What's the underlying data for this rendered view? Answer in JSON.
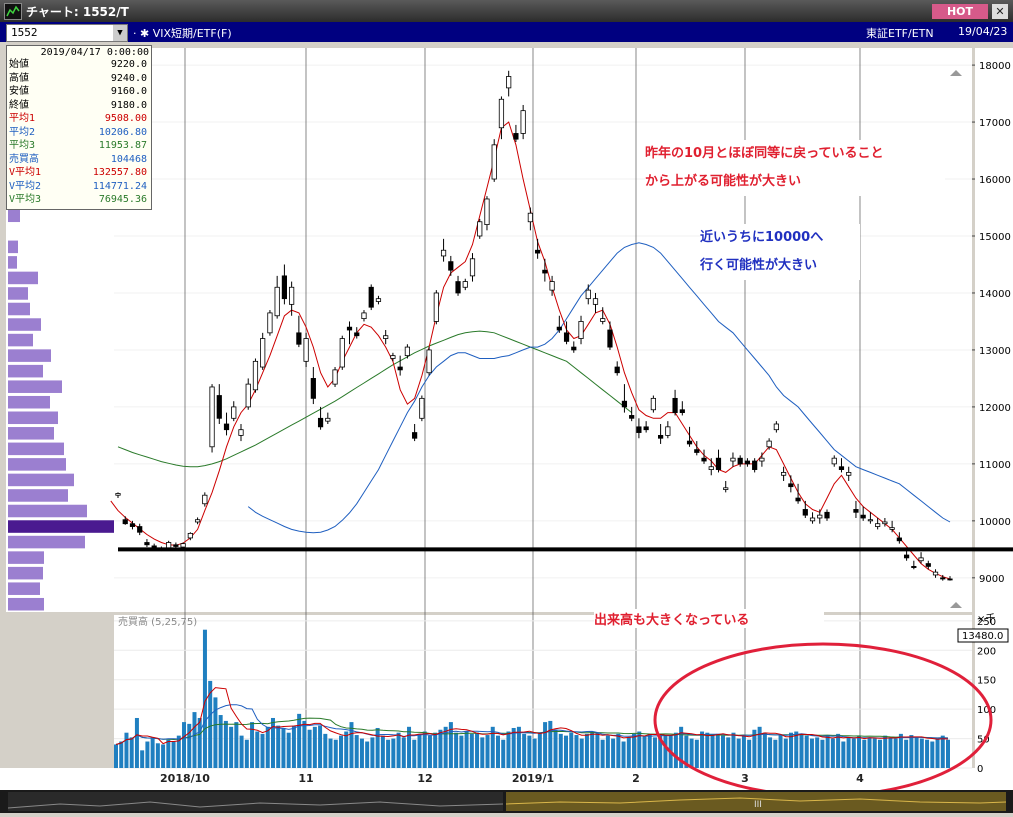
{
  "window": {
    "title": "チャート: 1552/T",
    "hot_label": "HOT",
    "close_label": "✕"
  },
  "toolbar": {
    "symbol": "1552",
    "name": "VIX短期/ETF(F)",
    "market": "東証ETF/ETN",
    "date": "19/04/23"
  },
  "info": {
    "datetime": "2019/04/17 0:00:00",
    "rows": [
      {
        "label": "始値",
        "value": "9220.0",
        "color": "#000000"
      },
      {
        "label": "高値",
        "value": "9240.0",
        "color": "#000000"
      },
      {
        "label": "安値",
        "value": "9160.0",
        "color": "#000000"
      },
      {
        "label": "終値",
        "value": "9180.0",
        "color": "#000000"
      },
      {
        "label": "平均1",
        "value": "9508.00",
        "color": "#cc0000"
      },
      {
        "label": "平均2",
        "value": "10206.80",
        "color": "#1f5fc0"
      },
      {
        "label": "平均3",
        "value": "11953.87",
        "color": "#2a7a2a"
      },
      {
        "label": "売買高",
        "value": "104468",
        "color": "#1f5fc0"
      },
      {
        "label": "V平均1",
        "value": "132557.80",
        "color": "#cc0000"
      },
      {
        "label": "V平均2",
        "value": "114771.24",
        "color": "#1f5fc0"
      },
      {
        "label": "V平均3",
        "value": "76945.36",
        "color": "#2a7a2a"
      }
    ]
  },
  "annotations": {
    "note1_line1": "昨年の10月とほぼ同等に戻っていること",
    "note1_line2": "から上がる可能性が大きい",
    "note2_line1": "近いうちに10000へ",
    "note2_line2": "行く可能性が大きい",
    "note3": "出来高も大きくなっている"
  },
  "chart_data": {
    "type": "candlestick",
    "price_ticks": [
      18000,
      17000,
      16000,
      15000,
      14000,
      13000,
      12000,
      11000,
      10000,
      9000
    ],
    "price_ylim": [
      8400,
      18300
    ],
    "volume_ticks": [
      "250",
      "200",
      "150",
      "100",
      "50",
      "0"
    ],
    "volume_unit": "×千",
    "volume_max_label": "13480.0",
    "volume_panel_label": "売買高 (5,25,75)",
    "x_labels": [
      "2018/10",
      "11",
      "12",
      "2019/1",
      "2",
      "3",
      "4"
    ],
    "horizontal_line_value": 9500,
    "colors": {
      "ma1": "#cc0000",
      "ma2": "#1f5fc0",
      "ma3": "#2a7a2a",
      "volume_bar": "#1f7fc0",
      "volume_profile": "#9b7fd0",
      "volume_profile_highlight": "#4a1a90",
      "highlight_ellipse": "#e0203a"
    },
    "candles": [
      [
        10450,
        10500,
        10400,
        10480
      ],
      [
        10020,
        10080,
        9930,
        9950
      ],
      [
        9950,
        10000,
        9850,
        9900
      ],
      [
        9900,
        9950,
        9750,
        9800
      ],
      [
        9620,
        9680,
        9540,
        9580
      ],
      [
        9560,
        9600,
        9480,
        9500
      ],
      [
        9490,
        9550,
        9470,
        9510
      ],
      [
        9500,
        9650,
        9480,
        9620
      ],
      [
        9580,
        9620,
        9520,
        9550
      ],
      [
        9540,
        9620,
        9510,
        9600
      ],
      [
        9700,
        9800,
        9660,
        9780
      ],
      [
        9980,
        10060,
        9940,
        10020
      ],
      [
        10300,
        10500,
        10250,
        10450
      ],
      [
        11300,
        12400,
        11200,
        12350
      ],
      [
        12200,
        12400,
        11700,
        11800
      ],
      [
        11700,
        11900,
        11500,
        11600
      ],
      [
        11800,
        12100,
        11750,
        12000
      ],
      [
        11500,
        11700,
        11400,
        11600
      ],
      [
        12000,
        12500,
        11950,
        12400
      ],
      [
        12300,
        12850,
        12250,
        12800
      ],
      [
        12700,
        13300,
        12650,
        13200
      ],
      [
        13300,
        13700,
        13250,
        13650
      ],
      [
        13600,
        14300,
        13550,
        14100
      ],
      [
        14300,
        14500,
        13800,
        13900
      ],
      [
        13800,
        14200,
        13600,
        14100
      ],
      [
        13300,
        13600,
        13050,
        13100
      ],
      [
        12800,
        13300,
        12700,
        13200
      ],
      [
        12500,
        12700,
        12050,
        12150
      ],
      [
        11800,
        12000,
        11600,
        11650
      ],
      [
        11750,
        11900,
        11700,
        11800
      ],
      [
        12400,
        12700,
        12350,
        12650
      ],
      [
        12700,
        13250,
        12650,
        13200
      ],
      [
        13400,
        13500,
        13100,
        13350
      ],
      [
        13300,
        13400,
        13200,
        13250
      ],
      [
        13550,
        13700,
        13500,
        13650
      ],
      [
        14100,
        14150,
        13700,
        13750
      ],
      [
        13850,
        13950,
        13800,
        13900
      ],
      [
        13200,
        13350,
        13100,
        13250
      ],
      [
        12850,
        12950,
        12800,
        12900
      ],
      [
        12700,
        12900,
        12550,
        12650
      ],
      [
        12900,
        13100,
        12850,
        13050
      ],
      [
        11550,
        11700,
        11400,
        11450
      ],
      [
        11800,
        12200,
        11750,
        12150
      ],
      [
        12600,
        13050,
        12550,
        13000
      ],
      [
        13500,
        14050,
        13450,
        14000
      ],
      [
        14650,
        14950,
        14550,
        14750
      ],
      [
        14550,
        14650,
        14300,
        14400
      ],
      [
        14200,
        14300,
        13950,
        14000
      ],
      [
        14100,
        14250,
        14050,
        14200
      ],
      [
        14300,
        14700,
        14200,
        14600
      ],
      [
        15000,
        15300,
        14950,
        15250
      ],
      [
        15200,
        15700,
        15100,
        15650
      ],
      [
        16000,
        16700,
        15950,
        16600
      ],
      [
        16900,
        17450,
        16700,
        17400
      ],
      [
        17600,
        17900,
        17450,
        17800
      ],
      [
        16800,
        16950,
        16650,
        16700
      ],
      [
        16800,
        17300,
        16700,
        17200
      ],
      [
        15250,
        15500,
        15100,
        15400
      ],
      [
        14750,
        14950,
        14600,
        14700
      ],
      [
        14400,
        14600,
        14200,
        14350
      ],
      [
        14050,
        14300,
        13950,
        14200
      ],
      [
        13400,
        13600,
        13300,
        13350
      ],
      [
        13300,
        13500,
        13100,
        13150
      ],
      [
        13050,
        13150,
        12950,
        13000
      ],
      [
        13200,
        13600,
        13100,
        13500
      ],
      [
        13900,
        14150,
        13800,
        14050
      ],
      [
        13800,
        14000,
        13650,
        13900
      ],
      [
        13500,
        13750,
        13450,
        13550
      ],
      [
        13350,
        13500,
        13000,
        13050
      ],
      [
        12700,
        12800,
        12550,
        12600
      ],
      [
        12100,
        12400,
        11900,
        12000
      ],
      [
        11850,
        12000,
        11750,
        11800
      ],
      [
        11650,
        11800,
        11450,
        11550
      ],
      [
        11650,
        11750,
        11550,
        11600
      ],
      [
        11950,
        12200,
        11900,
        12150
      ],
      [
        11500,
        11700,
        11350,
        11450
      ],
      [
        11500,
        11750,
        11450,
        11650
      ],
      [
        12150,
        12300,
        11850,
        11900
      ],
      [
        11950,
        12100,
        11850,
        11900
      ],
      [
        11400,
        11650,
        11300,
        11350
      ],
      [
        11250,
        11400,
        11150,
        11200
      ],
      [
        11100,
        11250,
        11000,
        11050
      ],
      [
        10900,
        11100,
        10800,
        10950
      ],
      [
        11100,
        11250,
        10850,
        10900
      ],
      [
        10550,
        10700,
        10500,
        10580
      ],
      [
        11050,
        11200,
        10950,
        11100
      ],
      [
        11100,
        11150,
        10950,
        11000
      ],
      [
        11050,
        11100,
        10950,
        11000
      ],
      [
        11050,
        11100,
        10850,
        10900
      ],
      [
        11050,
        11200,
        10950,
        11100
      ],
      [
        11300,
        11450,
        11250,
        11400
      ],
      [
        11600,
        11750,
        11550,
        11700
      ],
      [
        10800,
        10950,
        10700,
        10850
      ],
      [
        10650,
        10800,
        10500,
        10600
      ],
      [
        10400,
        10650,
        10300,
        10350
      ],
      [
        10200,
        10350,
        10050,
        10100
      ],
      [
        10000,
        10150,
        9950,
        10050
      ],
      [
        10050,
        10200,
        9950,
        10100
      ],
      [
        10150,
        10200,
        10000,
        10050
      ],
      [
        11000,
        11150,
        10950,
        11100
      ],
      [
        10950,
        11100,
        10850,
        10900
      ],
      [
        10800,
        10950,
        10700,
        10850
      ],
      [
        10200,
        10350,
        10050,
        10150
      ],
      [
        10100,
        10250,
        10000,
        10050
      ],
      [
        10000,
        10150,
        9950,
        10020
      ],
      [
        9900,
        10050,
        9850,
        9950
      ],
      [
        9950,
        10050,
        9900,
        9980
      ],
      [
        9850,
        10000,
        9800,
        9880
      ],
      [
        9700,
        9800,
        9600,
        9650
      ],
      [
        9400,
        9500,
        9300,
        9350
      ],
      [
        9200,
        9300,
        9150,
        9180
      ],
      [
        9300,
        9450,
        9250,
        9350
      ],
      [
        9250,
        9300,
        9150,
        9200
      ],
      [
        9050,
        9150,
        9000,
        9100
      ],
      [
        9000,
        9050,
        8950,
        8980
      ],
      [
        8980,
        9030,
        8950,
        8970
      ]
    ],
    "ma1": [
      10350,
      10180,
      10060,
      9960,
      9860,
      9760,
      9680,
      9620,
      9580,
      9570,
      9610,
      9700,
      9850,
      10180,
      10500,
      10880,
      11300,
      11650,
      11900,
      12050,
      12300,
      12600,
      12900,
      13250,
      13600,
      13700,
      13650,
      13400,
      13050,
      12600,
      12350,
      12500,
      12800,
      13050,
      13300,
      13450,
      13400,
      13250,
      13050,
      12800,
      12300,
      12050,
      12150,
      12550,
      13050,
      13600,
      14100,
      14350,
      14450,
      14550,
      14850,
      15350,
      15850,
      16350,
      16900,
      17000,
      16600,
      16000,
      15450,
      14900,
      14550,
      14100,
      13700,
      13350,
      13200,
      13250,
      13450,
      13650,
      13700,
      13450,
      13050,
      12600,
      12250,
      11950,
      11850,
      11800,
      11800,
      11900,
      11900,
      11700,
      11500,
      11300,
      11150,
      11050,
      10900,
      10850,
      10950,
      11000,
      11000,
      11000,
      11150,
      11300,
      11250,
      11000,
      10750,
      10500,
      10300,
      10200,
      10150,
      10400,
      10650,
      10800,
      10600,
      10400,
      10250,
      10150,
      10050,
      9950,
      9850,
      9700,
      9550,
      9400,
      9250,
      9150,
      9080,
      9020,
      8980
    ],
    "ma2": [
      10250,
      10150,
      10080,
      10020,
      9960,
      9900,
      9850,
      9820,
      9800,
      9790,
      9800,
      9840,
      9900,
      10010,
      10140,
      10300,
      10500,
      10700,
      10900,
      11150,
      11400,
      11650,
      11900,
      12100,
      12350,
      12550,
      12700,
      12800,
      12900,
      12950,
      12950,
      12900,
      12850,
      12850,
      12850,
      12880,
      12900,
      12950,
      13000,
      13050,
      13050,
      13100,
      13200,
      13350,
      13550,
      13750,
      13950,
      14100,
      14250,
      14400,
      14550,
      14700,
      14800,
      14850,
      14880,
      14850,
      14800,
      14700,
      14550,
      14400,
      14250,
      14100,
      13950,
      13800,
      13650,
      13500,
      13400,
      13300,
      13150,
      13000,
      12850,
      12700,
      12550,
      12350,
      12200,
      12100,
      12000,
      11850,
      11700,
      11550,
      11400,
      11250,
      11150,
      11050,
      10950,
      10900,
      10850,
      10800,
      10750,
      10700,
      10650,
      10550,
      10450,
      10350,
      10250,
      10150,
      10050,
      9980
    ],
    "ma3": [
      11300,
      11250,
      11200,
      11160,
      11120,
      11080,
      11040,
      11010,
      10980,
      10960,
      10950,
      10950,
      10970,
      11000,
      11040,
      11090,
      11150,
      11210,
      11270,
      11330,
      11400,
      11470,
      11540,
      11610,
      11680,
      11750,
      11820,
      11890,
      11960,
      12030,
      12100,
      12180,
      12260,
      12340,
      12420,
      12500,
      12580,
      12660,
      12740,
      12810,
      12880,
      12950,
      13010,
      13070,
      13120,
      13170,
      13220,
      13270,
      13300,
      13320,
      13330,
      13320,
      13300,
      13250,
      13200,
      13150,
      13100,
      13050,
      13000,
      12950,
      12900,
      12850,
      12800,
      12700,
      12600,
      12500,
      12400,
      12300,
      12200,
      12100,
      12000,
      11900
    ],
    "volume": [
      40,
      45,
      60,
      52,
      85,
      30,
      45,
      50,
      42,
      40,
      48,
      45,
      55,
      78,
      75,
      95,
      85,
      235,
      148,
      120,
      90,
      80,
      70,
      78,
      55,
      48,
      78,
      62,
      58,
      70,
      85,
      72,
      68,
      60,
      72,
      92,
      80,
      65,
      70,
      72,
      58,
      50,
      48,
      55,
      62,
      78,
      56,
      50,
      45,
      52,
      68,
      55,
      48,
      50,
      60,
      52,
      70,
      48,
      58,
      62,
      55,
      60,
      65,
      70,
      78,
      60,
      55,
      62,
      58,
      60,
      52,
      56,
      70,
      55,
      48,
      62,
      68,
      70,
      58,
      55,
      50,
      60,
      78,
      80,
      65,
      58,
      55,
      60,
      56,
      50,
      58,
      62,
      60,
      48,
      55,
      50,
      58,
      45,
      52,
      58,
      62,
      55,
      58,
      52,
      58,
      55,
      56,
      60,
      70,
      55,
      50,
      48,
      62,
      60,
      56,
      58,
      55,
      52,
      60,
      50,
      55,
      48,
      65,
      70,
      60,
      52,
      48,
      56,
      50,
      60,
      62,
      58,
      55,
      50,
      52,
      48,
      55,
      50,
      58,
      45,
      52,
      50,
      55,
      48,
      52,
      50,
      48,
      55,
      52,
      50,
      58,
      48,
      56,
      52,
      50,
      48,
      45,
      50,
      55,
      48
    ],
    "volume_profile": [
      12,
      0,
      10,
      9,
      30,
      20,
      22,
      33,
      25,
      43,
      35,
      54,
      42,
      50,
      46,
      56,
      58,
      66,
      60,
      79,
      106,
      77,
      36,
      35,
      32,
      36
    ]
  }
}
